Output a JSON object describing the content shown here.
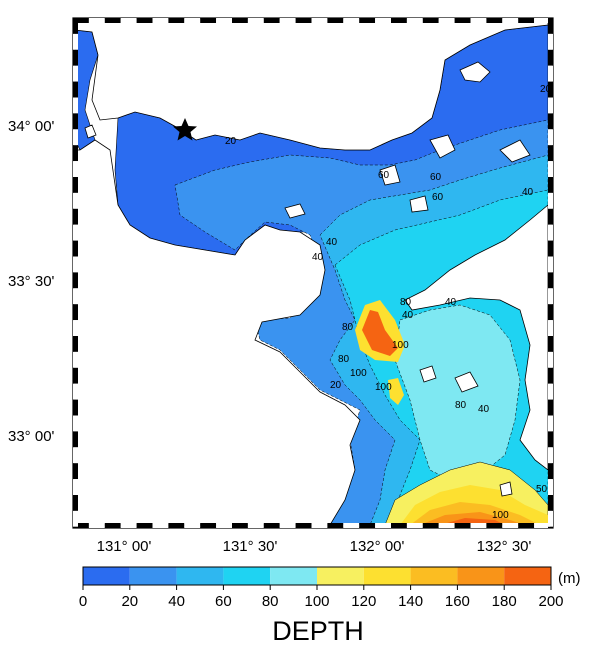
{
  "map": {
    "lat_labels": [
      "34° 00'",
      "33° 30'",
      "33° 00'"
    ],
    "lon_labels": [
      "131° 00'",
      "131° 30'",
      "132° 00'",
      "132° 30'"
    ],
    "contour_labels": [
      "20",
      "40",
      "60",
      "80",
      "100",
      "40",
      "60",
      "40",
      "80",
      "100",
      "20",
      "40",
      "80",
      "100",
      "100",
      "60",
      "80",
      "40",
      "20",
      "40",
      "50"
    ],
    "marker": "star-icon"
  },
  "colorbar": {
    "ticks": [
      "0",
      "20",
      "40",
      "60",
      "80",
      "100",
      "120",
      "140",
      "160",
      "180",
      "200"
    ],
    "colors": [
      "#2b6cf0",
      "#3a93f0",
      "#2fb7f0",
      "#1fd3f2",
      "#7ee8f2",
      "#f7f060",
      "#fde030",
      "#fbbd22",
      "#f99418",
      "#f56412"
    ],
    "unit": "(m)",
    "title": "DEPTH"
  }
}
